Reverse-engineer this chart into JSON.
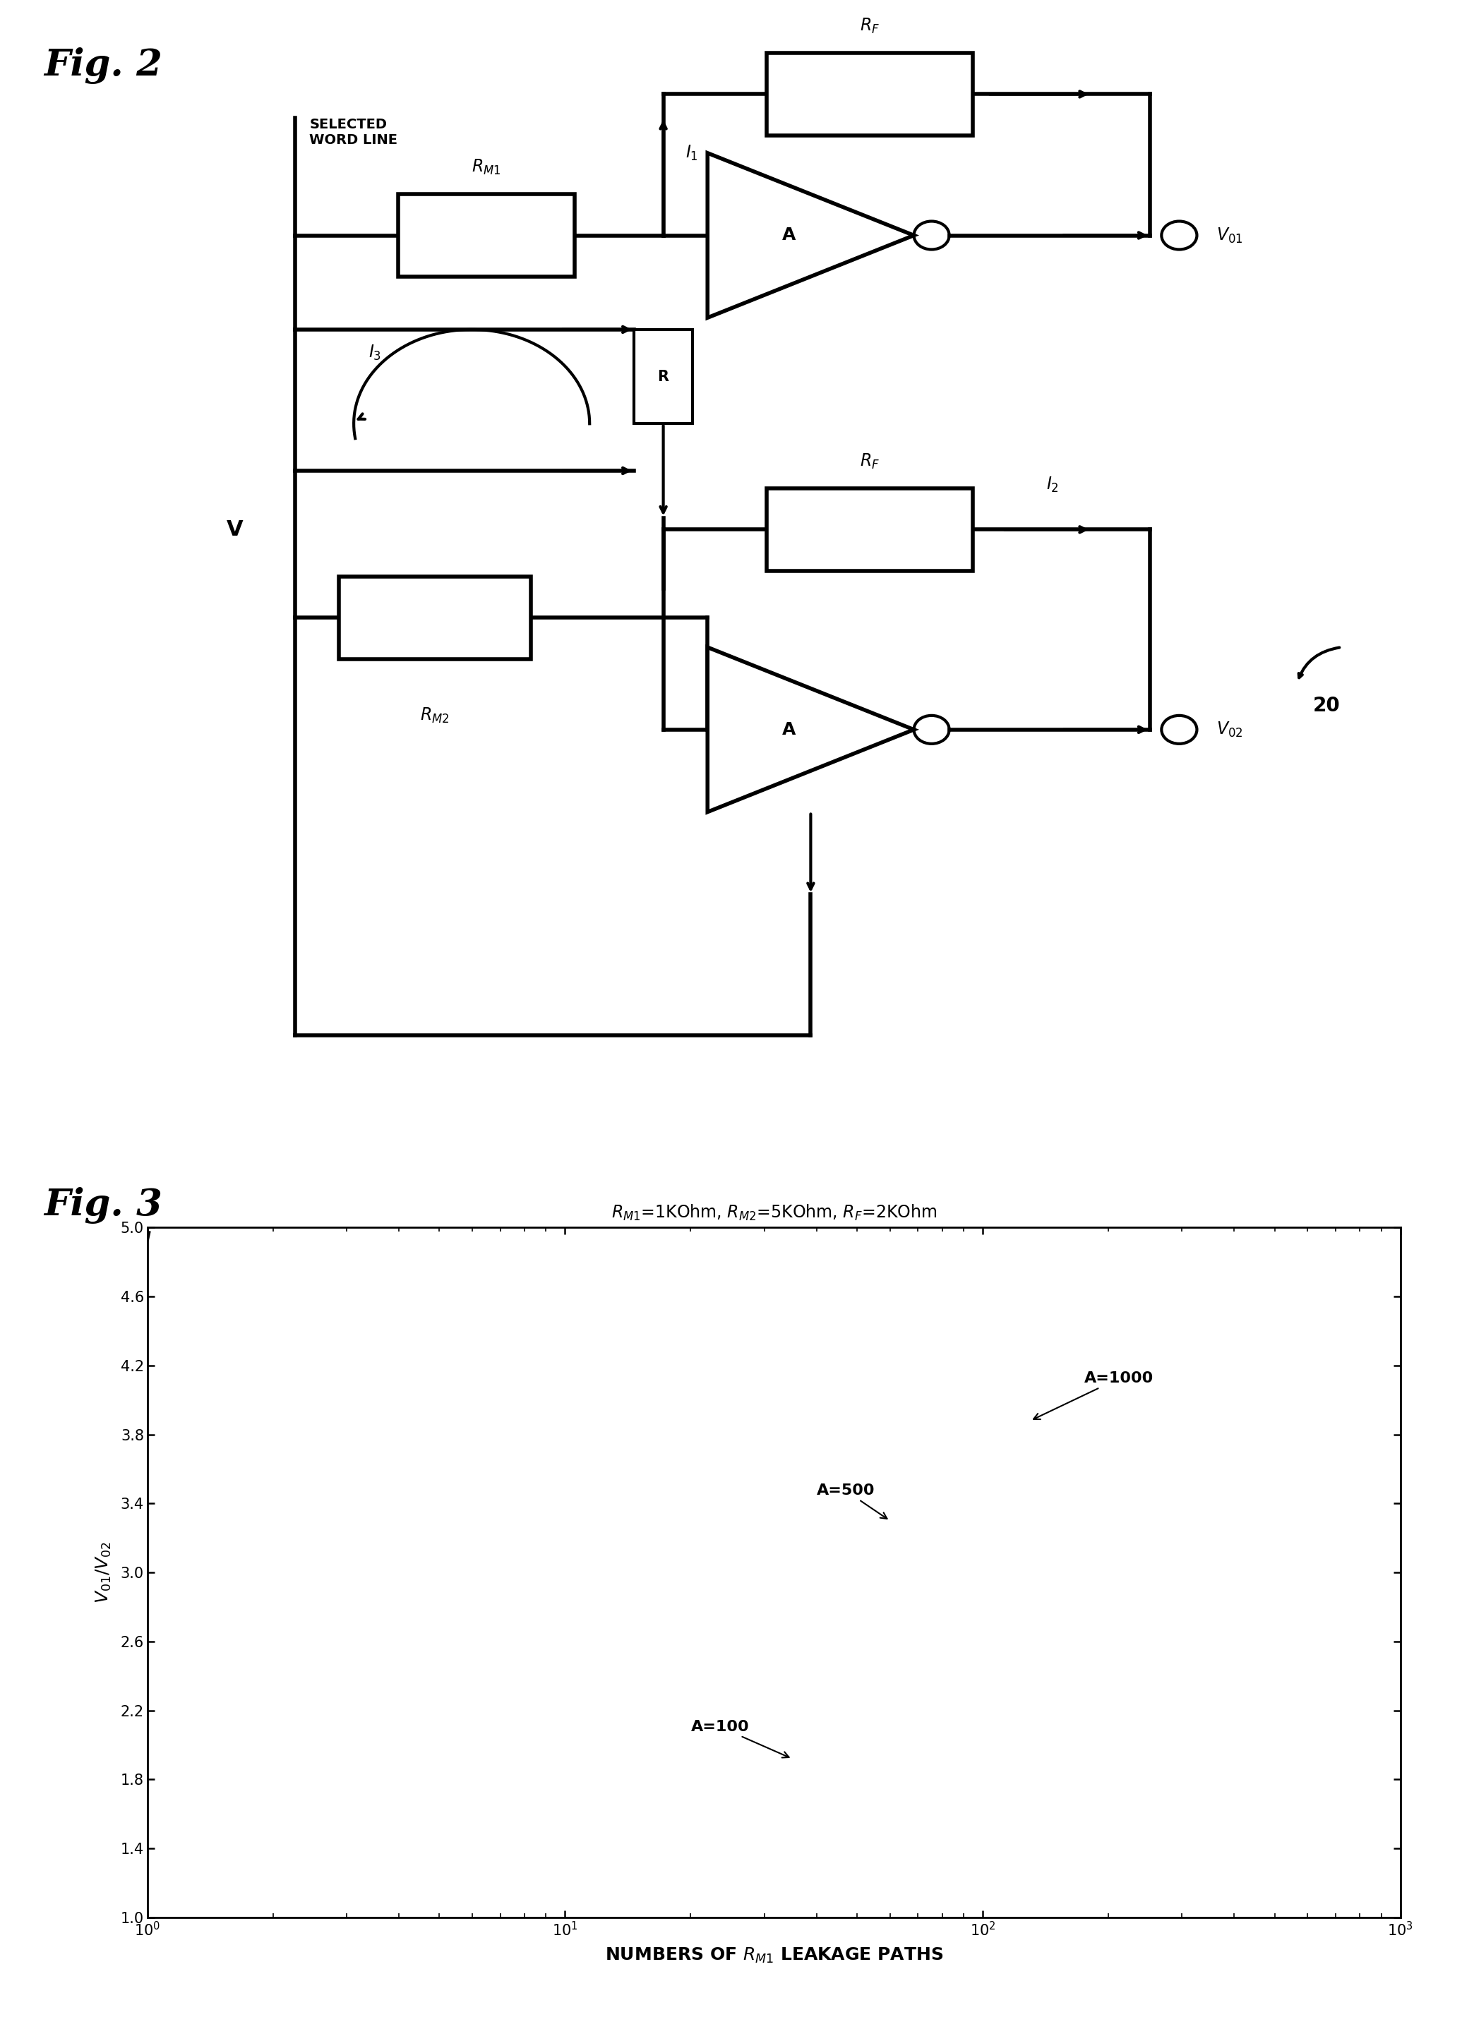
{
  "fig2_label": "Fig. 2",
  "fig3_label": "Fig. 3",
  "fig3_title": "$R_{M1}$=1KOhm, $R_{M2}$=5KOhm, $R_{F}$=2KOhm",
  "xlabel": "NUMBERS OF $R_{M1}$ LEAKAGE PATHS",
  "ylabel": "$V_{01}/V_{02}$",
  "ylim": [
    1.0,
    5.0
  ],
  "yticks": [
    1.0,
    1.4,
    1.8,
    2.2,
    2.6,
    3.0,
    3.4,
    3.8,
    4.2,
    4.6,
    5.0
  ],
  "A_values": [
    100,
    500,
    1000
  ],
  "RM1": 1000,
  "RM2": 5000,
  "RF": 2000,
  "background_color": "#ffffff",
  "line_color": "#000000"
}
